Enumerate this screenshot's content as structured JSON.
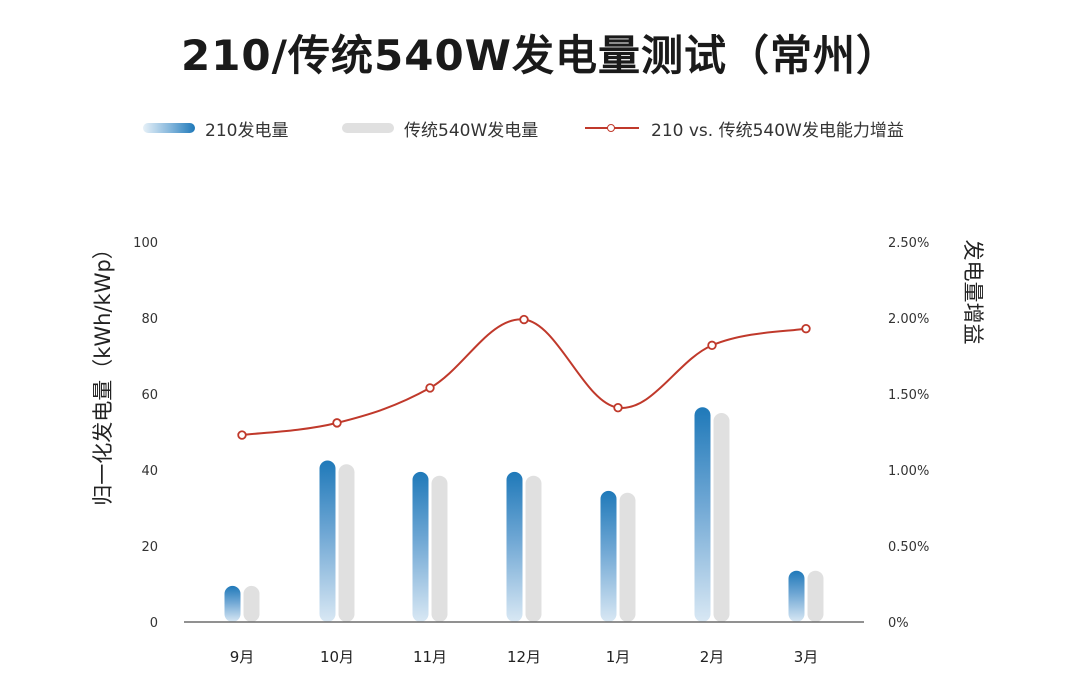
{
  "title": "210/传统540W发电量测试（常州）",
  "legend": {
    "bar1": "210发电量",
    "bar2": "传统540W发电量",
    "line": "210 vs. 传统540W发电能力增益"
  },
  "colors": {
    "bar1": "#1f79b9",
    "bar2": "#e0e0e0",
    "line": "#c0392b"
  },
  "chart_data": {
    "type": "bar",
    "categories": [
      "9月",
      "10月",
      "11月",
      "12月",
      "1月",
      "2月",
      "3月"
    ],
    "series": [
      {
        "name": "210发电量",
        "values": [
          9.5,
          42.5,
          39.5,
          39.5,
          34.5,
          56.5,
          13.5
        ]
      },
      {
        "name": "传统540W发电量",
        "values": [
          9.5,
          41.5,
          38.5,
          38.5,
          34,
          55,
          13.5
        ]
      },
      {
        "name": "210 vs. 传统540W发电能力增益",
        "type": "line",
        "axis": "right",
        "values": [
          1.23,
          1.31,
          1.54,
          1.99,
          1.41,
          1.82,
          1.93
        ]
      }
    ],
    "ylabel": "归一化发电量（kWh/kWp）",
    "y2label": "发电量增益",
    "ylim": [
      0,
      100
    ],
    "y2lim": [
      0,
      2.5
    ],
    "yticks": [
      "0",
      "20",
      "40",
      "60",
      "80",
      "100"
    ],
    "y2ticks": [
      "0%",
      "0.50%",
      "1.00%",
      "1.50%",
      "2.00%",
      "2.50%"
    ],
    "legend_position": "top",
    "grid": false
  }
}
